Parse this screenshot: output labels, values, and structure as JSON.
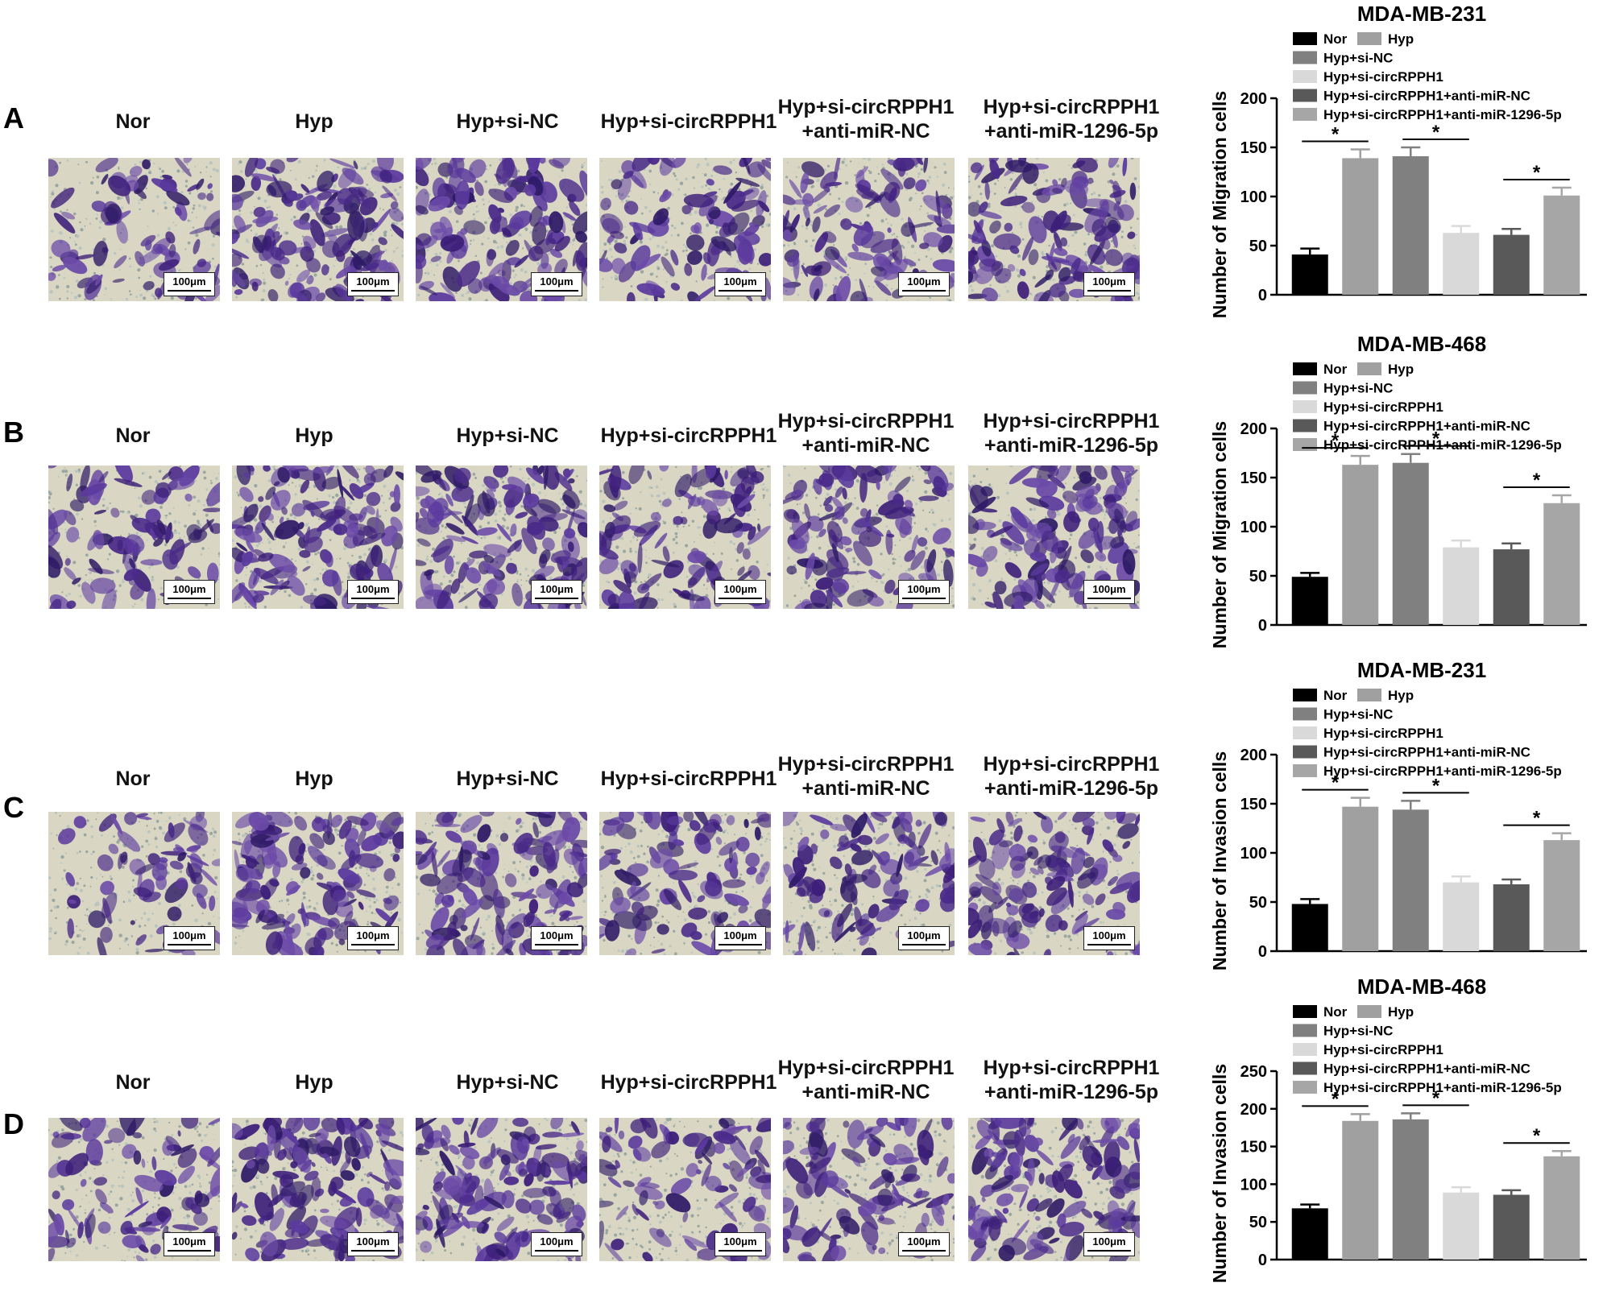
{
  "panels": [
    {
      "letter": "A",
      "labels": [
        "Nor",
        "Hyp",
        "Hyp+si-NC",
        "Hyp+si-circRPPH1",
        "Hyp+si-circRPPH1\n+anti-miR-NC",
        "Hyp+si-circRPPH1\n+anti-miR-1296-5p"
      ],
      "scale": "100μm"
    },
    {
      "letter": "B",
      "labels": [
        "Nor",
        "Hyp",
        "Hyp+si-NC",
        "Hyp+si-circRPPH1",
        "Hyp+si-circRPPH1\n+anti-miR-NC",
        "Hyp+si-circRPPH1\n+anti-miR-1296-5p"
      ],
      "scale": "100μm"
    },
    {
      "letter": "C",
      "labels": [
        "Nor",
        "Hyp",
        "Hyp+si-NC",
        "Hyp+si-circRPPH1",
        "Hyp+si-circRPPH1\n+anti-miR-NC",
        "Hyp+si-circRPPH1\n+anti-miR-1296-5p"
      ],
      "scale": "100μm"
    },
    {
      "letter": "D",
      "labels": [
        "Nor",
        "Hyp",
        "Hyp+si-NC",
        "Hyp+si-circRPPH1",
        "Hyp+si-circRPPH1\n+anti-miR-NC",
        "Hyp+si-circRPPH1\n+anti-miR-1296-5p"
      ],
      "scale": "100μm"
    }
  ],
  "colors": {
    "stain": "#4a2a8a",
    "background_cell": "#d9d7c3",
    "series": [
      "#000000",
      "#a0a0a0",
      "#808080",
      "#d9d9d9",
      "#595959",
      "#a6a6a6"
    ]
  },
  "chart_data": [
    {
      "type": "bar",
      "title": "MDA-MB-231",
      "ylabel": "Number of Migration cells",
      "ylim": [
        0,
        200
      ],
      "yticks": [
        0,
        50,
        100,
        150,
        200
      ],
      "categories": [
        "Nor",
        "Hyp",
        "Hyp+si-NC",
        "Hyp+si-circRPPH1",
        "Hyp+si-circRPPH1+anti-miR-NC",
        "Hyp+si-circRPPH1+anti-miR-1296-5p"
      ],
      "values": [
        41,
        139,
        141,
        63,
        61,
        101
      ],
      "errors": [
        6,
        9,
        9,
        7,
        6,
        8
      ],
      "significance": [
        {
          "from": 0,
          "to": 1,
          "label": "*"
        },
        {
          "from": 2,
          "to": 3,
          "label": "*"
        },
        {
          "from": 4,
          "to": 5,
          "label": "*"
        }
      ],
      "legend": "top"
    },
    {
      "type": "bar",
      "title": "MDA-MB-468",
      "ylabel": "Number of Migration cells",
      "ylim": [
        0,
        200
      ],
      "yticks": [
        0,
        50,
        100,
        150,
        200
      ],
      "categories": [
        "Nor",
        "Hyp",
        "Hyp+si-NC",
        "Hyp+si-circRPPH1",
        "Hyp+si-circRPPH1+anti-miR-NC",
        "Hyp+si-circRPPH1+anti-miR-1296-5p"
      ],
      "values": [
        49,
        163,
        165,
        79,
        77,
        124
      ],
      "errors": [
        4,
        9,
        9,
        7,
        6,
        8
      ],
      "significance": [
        {
          "from": 0,
          "to": 1,
          "label": "*"
        },
        {
          "from": 2,
          "to": 3,
          "label": "*"
        },
        {
          "from": 4,
          "to": 5,
          "label": "*"
        }
      ],
      "legend": "top"
    },
    {
      "type": "bar",
      "title": "MDA-MB-231",
      "ylabel": "Number of Invasion cells",
      "ylim": [
        0,
        200
      ],
      "yticks": [
        0,
        50,
        100,
        150,
        200
      ],
      "categories": [
        "Nor",
        "Hyp",
        "Hyp+si-NC",
        "Hyp+si-circRPPH1",
        "Hyp+si-circRPPH1+anti-miR-NC",
        "Hyp+si-circRPPH1+anti-miR-1296-5p"
      ],
      "values": [
        48,
        147,
        144,
        70,
        68,
        113
      ],
      "errors": [
        5,
        9,
        9,
        6,
        5,
        7
      ],
      "significance": [
        {
          "from": 0,
          "to": 1,
          "label": "*"
        },
        {
          "from": 2,
          "to": 3,
          "label": "*"
        },
        {
          "from": 4,
          "to": 5,
          "label": "*"
        }
      ],
      "legend": "top"
    },
    {
      "type": "bar",
      "title": "MDA-MB-468",
      "ylabel": "Number of Invasion cells",
      "ylim": [
        0,
        250
      ],
      "yticks": [
        0,
        50,
        100,
        150,
        200,
        250
      ],
      "categories": [
        "Nor",
        "Hyp",
        "Hyp+si-NC",
        "Hyp+si-circRPPH1",
        "Hyp+si-circRPPH1+anti-miR-NC",
        "Hyp+si-circRPPH1+anti-miR-1296-5p"
      ],
      "values": [
        68,
        184,
        186,
        89,
        86,
        137
      ],
      "errors": [
        5,
        9,
        8,
        7,
        6,
        7
      ],
      "significance": [
        {
          "from": 0,
          "to": 1,
          "label": "*"
        },
        {
          "from": 2,
          "to": 3,
          "label": "*"
        },
        {
          "from": 4,
          "to": 5,
          "label": "*"
        }
      ],
      "legend": "top"
    }
  ]
}
